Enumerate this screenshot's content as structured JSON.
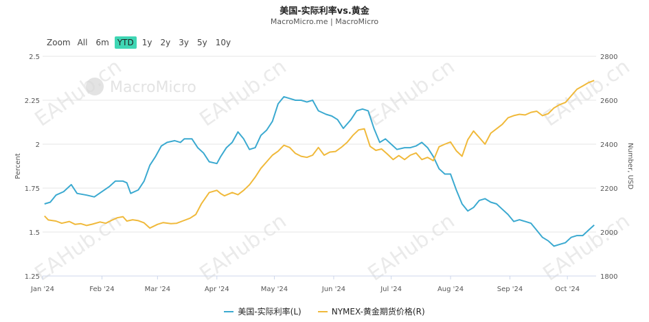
{
  "header": {
    "title": "美国-实际利率vs.黄金",
    "subtitle": "MacroMicro.me | MacroMicro"
  },
  "range_selector": {
    "zoom_label": "Zoom",
    "buttons": [
      "All",
      "6m",
      "YTD",
      "1y",
      "2y",
      "3y",
      "5y",
      "10y"
    ],
    "active": "YTD"
  },
  "branding": {
    "logo_text": "MacroMicro",
    "watermark_text": "EAHub.cn"
  },
  "colors": {
    "real_rate": "#3aa9d0",
    "gold": "#f0b93a",
    "grid": "#e6e6e6",
    "active_button": "#3fd6b4"
  },
  "chart_data": {
    "type": "line",
    "x_axis": {
      "type": "date",
      "range": [
        "2024-01-01",
        "2024-10-16"
      ],
      "tick_labels": [
        "Jan '24",
        "Feb '24",
        "Mar '24",
        "Apr '24",
        "May '24",
        "Jun '24",
        "Jul '24",
        "Aug '24",
        "Sep '24",
        "Oct '24"
      ],
      "tick_dates": [
        "2024-01-01",
        "2024-02-01",
        "2024-03-01",
        "2024-04-01",
        "2024-05-01",
        "2024-06-01",
        "2024-07-01",
        "2024-08-01",
        "2024-09-01",
        "2024-10-01"
      ]
    },
    "y_left": {
      "label": "Percent",
      "range": [
        1.25,
        2.5
      ],
      "ticks": [
        1.25,
        1.5,
        1.75,
        2,
        2.25,
        2.5
      ],
      "tick_labels": [
        "1.25",
        "1.5",
        "1.75",
        "2",
        "2.25",
        "2.5"
      ]
    },
    "y_right": {
      "label": "Number, USD",
      "range": [
        1800,
        2800
      ],
      "ticks": [
        1800,
        2000,
        2200,
        2400,
        2600,
        2800
      ],
      "tick_labels": [
        "1800",
        "2000",
        "2200",
        "2400",
        "2600",
        "2800"
      ]
    },
    "grid": true,
    "legend_position": "bottom-center",
    "series": [
      {
        "name": "美国-实际利率(L)",
        "axis": "left",
        "points": [
          [
            "2024-01-02",
            1.66
          ],
          [
            "2024-01-05",
            1.67
          ],
          [
            "2024-01-08",
            1.71
          ],
          [
            "2024-01-12",
            1.73
          ],
          [
            "2024-01-16",
            1.77
          ],
          [
            "2024-01-19",
            1.72
          ],
          [
            "2024-01-24",
            1.71
          ],
          [
            "2024-01-28",
            1.7
          ],
          [
            "2024-02-01",
            1.73
          ],
          [
            "2024-02-05",
            1.76
          ],
          [
            "2024-02-08",
            1.79
          ],
          [
            "2024-02-12",
            1.79
          ],
          [
            "2024-02-14",
            1.78
          ],
          [
            "2024-02-16",
            1.72
          ],
          [
            "2024-02-20",
            1.74
          ],
          [
            "2024-02-23",
            1.79
          ],
          [
            "2024-02-26",
            1.88
          ],
          [
            "2024-02-29",
            1.93
          ],
          [
            "2024-03-03",
            1.99
          ],
          [
            "2024-03-06",
            2.01
          ],
          [
            "2024-03-10",
            2.02
          ],
          [
            "2024-03-13",
            2.01
          ],
          [
            "2024-03-15",
            2.03
          ],
          [
            "2024-03-19",
            2.03
          ],
          [
            "2024-03-22",
            1.98
          ],
          [
            "2024-03-25",
            1.95
          ],
          [
            "2024-03-28",
            1.9
          ],
          [
            "2024-04-01",
            1.89
          ],
          [
            "2024-04-03",
            1.93
          ],
          [
            "2024-04-06",
            1.98
          ],
          [
            "2024-04-09",
            2.01
          ],
          [
            "2024-04-12",
            2.07
          ],
          [
            "2024-04-15",
            2.03
          ],
          [
            "2024-04-18",
            1.97
          ],
          [
            "2024-04-21",
            1.98
          ],
          [
            "2024-04-24",
            2.05
          ],
          [
            "2024-04-27",
            2.08
          ],
          [
            "2024-04-30",
            2.13
          ],
          [
            "2024-05-03",
            2.23
          ],
          [
            "2024-05-06",
            2.27
          ],
          [
            "2024-05-09",
            2.26
          ],
          [
            "2024-05-12",
            2.25
          ],
          [
            "2024-05-15",
            2.25
          ],
          [
            "2024-05-18",
            2.24
          ],
          [
            "2024-05-21",
            2.25
          ],
          [
            "2024-05-24",
            2.19
          ],
          [
            "2024-05-28",
            2.17
          ],
          [
            "2024-05-31",
            2.16
          ],
          [
            "2024-06-03",
            2.14
          ],
          [
            "2024-06-06",
            2.09
          ],
          [
            "2024-06-10",
            2.14
          ],
          [
            "2024-06-13",
            2.19
          ],
          [
            "2024-06-16",
            2.2
          ],
          [
            "2024-06-19",
            2.19
          ],
          [
            "2024-06-22",
            2.09
          ],
          [
            "2024-06-25",
            2.01
          ],
          [
            "2024-06-28",
            2.03
          ],
          [
            "2024-07-01",
            2.0
          ],
          [
            "2024-07-04",
            1.97
          ],
          [
            "2024-07-08",
            1.98
          ],
          [
            "2024-07-11",
            1.98
          ],
          [
            "2024-07-14",
            1.99
          ],
          [
            "2024-07-17",
            2.01
          ],
          [
            "2024-07-20",
            1.98
          ],
          [
            "2024-07-23",
            1.93
          ],
          [
            "2024-07-26",
            1.86
          ],
          [
            "2024-07-29",
            1.83
          ],
          [
            "2024-08-01",
            1.83
          ],
          [
            "2024-08-04",
            1.74
          ],
          [
            "2024-08-07",
            1.66
          ],
          [
            "2024-08-10",
            1.62
          ],
          [
            "2024-08-13",
            1.64
          ],
          [
            "2024-08-16",
            1.68
          ],
          [
            "2024-08-19",
            1.69
          ],
          [
            "2024-08-22",
            1.67
          ],
          [
            "2024-08-25",
            1.66
          ],
          [
            "2024-08-28",
            1.63
          ],
          [
            "2024-08-31",
            1.6
          ],
          [
            "2024-09-03",
            1.56
          ],
          [
            "2024-09-06",
            1.57
          ],
          [
            "2024-09-09",
            1.56
          ],
          [
            "2024-09-12",
            1.55
          ],
          [
            "2024-09-15",
            1.51
          ],
          [
            "2024-09-18",
            1.47
          ],
          [
            "2024-09-21",
            1.45
          ],
          [
            "2024-09-24",
            1.42
          ],
          [
            "2024-09-27",
            1.43
          ],
          [
            "2024-09-30",
            1.44
          ],
          [
            "2024-10-03",
            1.47
          ],
          [
            "2024-10-06",
            1.48
          ],
          [
            "2024-10-09",
            1.48
          ],
          [
            "2024-10-12",
            1.51
          ],
          [
            "2024-10-15",
            1.54
          ]
        ]
      },
      {
        "name": "NYMEX-黄金期货价格(R)",
        "axis": "right",
        "points": [
          [
            "2024-01-02",
            2073
          ],
          [
            "2024-01-04",
            2055
          ],
          [
            "2024-01-08",
            2050
          ],
          [
            "2024-01-11",
            2040
          ],
          [
            "2024-01-15",
            2048
          ],
          [
            "2024-01-18",
            2035
          ],
          [
            "2024-01-21",
            2038
          ],
          [
            "2024-01-24",
            2030
          ],
          [
            "2024-01-27",
            2036
          ],
          [
            "2024-01-31",
            2046
          ],
          [
            "2024-02-03",
            2040
          ],
          [
            "2024-02-06",
            2053
          ],
          [
            "2024-02-09",
            2065
          ],
          [
            "2024-02-12",
            2070
          ],
          [
            "2024-02-14",
            2050
          ],
          [
            "2024-02-17",
            2056
          ],
          [
            "2024-02-20",
            2052
          ],
          [
            "2024-02-23",
            2042
          ],
          [
            "2024-02-26",
            2018
          ],
          [
            "2024-03-01",
            2035
          ],
          [
            "2024-03-04",
            2043
          ],
          [
            "2024-03-08",
            2038
          ],
          [
            "2024-03-11",
            2040
          ],
          [
            "2024-03-14",
            2050
          ],
          [
            "2024-03-18",
            2063
          ],
          [
            "2024-03-21",
            2080
          ],
          [
            "2024-03-24",
            2130
          ],
          [
            "2024-03-28",
            2180
          ],
          [
            "2024-04-01",
            2190
          ],
          [
            "2024-04-03",
            2175
          ],
          [
            "2024-04-05",
            2165
          ],
          [
            "2024-04-09",
            2180
          ],
          [
            "2024-04-12",
            2170
          ],
          [
            "2024-04-15",
            2190
          ],
          [
            "2024-04-18",
            2215
          ],
          [
            "2024-04-21",
            2250
          ],
          [
            "2024-04-24",
            2290
          ],
          [
            "2024-04-27",
            2320
          ],
          [
            "2024-04-30",
            2350
          ],
          [
            "2024-05-03",
            2368
          ],
          [
            "2024-05-06",
            2395
          ],
          [
            "2024-05-09",
            2385
          ],
          [
            "2024-05-12",
            2358
          ],
          [
            "2024-05-15",
            2345
          ],
          [
            "2024-05-18",
            2340
          ],
          [
            "2024-05-21",
            2350
          ],
          [
            "2024-05-24",
            2385
          ],
          [
            "2024-05-27",
            2350
          ],
          [
            "2024-05-30",
            2364
          ],
          [
            "2024-06-02",
            2367
          ],
          [
            "2024-06-05",
            2386
          ],
          [
            "2024-06-08",
            2408
          ],
          [
            "2024-06-11",
            2440
          ],
          [
            "2024-06-14",
            2465
          ],
          [
            "2024-06-17",
            2470
          ],
          [
            "2024-06-20",
            2390
          ],
          [
            "2024-06-23",
            2372
          ],
          [
            "2024-06-26",
            2378
          ],
          [
            "2024-06-29",
            2355
          ],
          [
            "2024-07-02",
            2330
          ],
          [
            "2024-07-05",
            2348
          ],
          [
            "2024-07-08",
            2330
          ],
          [
            "2024-07-11",
            2350
          ],
          [
            "2024-07-14",
            2360
          ],
          [
            "2024-07-17",
            2330
          ],
          [
            "2024-07-20",
            2340
          ],
          [
            "2024-07-23",
            2325
          ],
          [
            "2024-07-26",
            2388
          ],
          [
            "2024-07-29",
            2400
          ],
          [
            "2024-08-01",
            2410
          ],
          [
            "2024-08-04",
            2370
          ],
          [
            "2024-08-07",
            2345
          ],
          [
            "2024-08-10",
            2420
          ],
          [
            "2024-08-13",
            2460
          ],
          [
            "2024-08-16",
            2430
          ],
          [
            "2024-08-19",
            2400
          ],
          [
            "2024-08-22",
            2450
          ],
          [
            "2024-08-25",
            2470
          ],
          [
            "2024-08-28",
            2490
          ],
          [
            "2024-08-31",
            2520
          ],
          [
            "2024-09-03",
            2530
          ],
          [
            "2024-09-06",
            2536
          ],
          [
            "2024-09-09",
            2533
          ],
          [
            "2024-09-12",
            2545
          ],
          [
            "2024-09-15",
            2550
          ],
          [
            "2024-09-18",
            2530
          ],
          [
            "2024-09-21",
            2539
          ],
          [
            "2024-09-24",
            2565
          ],
          [
            "2024-09-27",
            2580
          ],
          [
            "2024-09-30",
            2590
          ],
          [
            "2024-10-03",
            2620
          ],
          [
            "2024-10-06",
            2650
          ],
          [
            "2024-10-09",
            2665
          ],
          [
            "2024-10-12",
            2680
          ],
          [
            "2024-10-15",
            2690
          ]
        ]
      }
    ]
  }
}
